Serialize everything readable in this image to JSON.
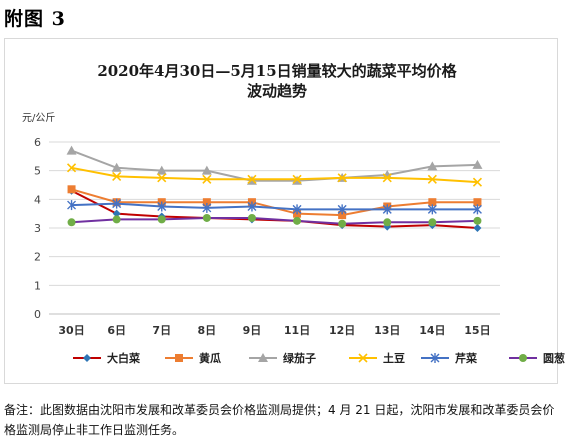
{
  "page": {
    "heading": "附图 3",
    "footnote": "备注：此图数据由沈阳市发展和改革委员会价格监测局提供；4 月 21 日起，沈阳市发展和改革委员会价格监测局停止非工作日监测任务。"
  },
  "chart_data": {
    "type": "line",
    "title_line1": "2020年4月30日—5月15日销量较大的蔬菜平均价格",
    "title_line2": "波动趋势",
    "ylabel": "元/公斤",
    "xlabel": "",
    "categories": [
      "30日",
      "6日",
      "7日",
      "8日",
      "9日",
      "11日",
      "12日",
      "13日",
      "14日",
      "15日"
    ],
    "ylim": [
      0,
      6
    ],
    "yticks": [
      0,
      1,
      2,
      3,
      4,
      5,
      6
    ],
    "grid": true,
    "legend_position": "bottom",
    "series": [
      {
        "name": "大白菜",
        "color": "#c00000",
        "marker": "diamond",
        "markerColor": "#2e75b6",
        "values": [
          4.3,
          3.5,
          3.4,
          3.35,
          3.3,
          3.25,
          3.1,
          3.05,
          3.1,
          3.0
        ]
      },
      {
        "name": "黄瓜",
        "color": "#ed7d31",
        "marker": "square",
        "markerColor": "#ed7d31",
        "values": [
          4.35,
          3.9,
          3.9,
          3.9,
          3.9,
          3.5,
          3.45,
          3.75,
          3.9,
          3.9
        ]
      },
      {
        "name": "绿茄子",
        "color": "#a5a5a5",
        "marker": "triangle",
        "markerColor": "#a5a5a5",
        "values": [
          5.7,
          5.1,
          5.0,
          5.0,
          4.65,
          4.65,
          4.75,
          4.85,
          5.15,
          5.2
        ]
      },
      {
        "name": "土豆",
        "color": "#ffc000",
        "marker": "x",
        "markerColor": "#ffc000",
        "values": [
          5.1,
          4.8,
          4.75,
          4.7,
          4.7,
          4.7,
          4.75,
          4.75,
          4.7,
          4.6
        ]
      },
      {
        "name": "芹菜",
        "color": "#4472c4",
        "marker": "star",
        "markerColor": "#4472c4",
        "values": [
          3.8,
          3.85,
          3.75,
          3.7,
          3.75,
          3.65,
          3.65,
          3.65,
          3.65,
          3.65
        ]
      },
      {
        "name": "圆葱",
        "color": "#7030a0",
        "marker": "circle",
        "markerColor": "#70ad47",
        "values": [
          3.2,
          3.3,
          3.3,
          3.35,
          3.35,
          3.25,
          3.15,
          3.2,
          3.2,
          3.25
        ]
      }
    ]
  }
}
